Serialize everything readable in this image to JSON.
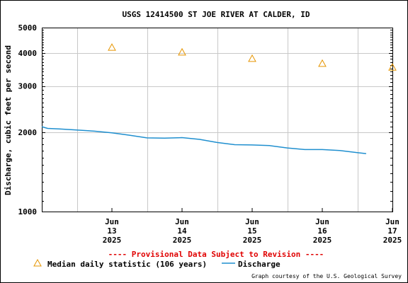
{
  "chart_data": {
    "type": "line",
    "title": "USGS 12414500 ST JOE RIVER AT CALDER, ID",
    "ylabel": "Discharge, cubic feet per second",
    "xlabel": "",
    "y_scale": "log",
    "ylim": [
      1000,
      5000
    ],
    "yticks": [
      "1000",
      "2000",
      "3000",
      "4000",
      "5000"
    ],
    "x_range": [
      "2025-06-12 12:00",
      "2025-06-17 12:00"
    ],
    "xticks": [
      {
        "month": "Jun",
        "day": "13",
        "year": "2025",
        "date": "2025-06-13"
      },
      {
        "month": "Jun",
        "day": "14",
        "year": "2025",
        "date": "2025-06-14"
      },
      {
        "month": "Jun",
        "day": "15",
        "year": "2025",
        "date": "2025-06-15"
      },
      {
        "month": "Jun",
        "day": "16",
        "year": "2025",
        "date": "2025-06-16"
      },
      {
        "month": "Jun",
        "day": "17",
        "year": "2025",
        "date": "2025-06-17"
      }
    ],
    "grid": true,
    "series": [
      {
        "name": "Median daily statistic (106 years)",
        "kind": "triangles",
        "color": "#e69500",
        "points": [
          {
            "x": "2025-06-13",
            "y": 4200
          },
          {
            "x": "2025-06-14",
            "y": 4030
          },
          {
            "x": "2025-06-15",
            "y": 3810
          },
          {
            "x": "2025-06-16",
            "y": 3650
          },
          {
            "x": "2025-06-17",
            "y": 3530
          }
        ]
      },
      {
        "name": "Discharge",
        "kind": "line",
        "color": "#1f8fcf",
        "points": [
          {
            "x": "2025-06-12 12:00",
            "y": 2100
          },
          {
            "x": "2025-06-12 14:00",
            "y": 2070
          },
          {
            "x": "2025-06-12 18:00",
            "y": 2060
          },
          {
            "x": "2025-06-13 00:00",
            "y": 2040
          },
          {
            "x": "2025-06-13 06:00",
            "y": 2020
          },
          {
            "x": "2025-06-13 12:00",
            "y": 1990
          },
          {
            "x": "2025-06-13 18:00",
            "y": 1950
          },
          {
            "x": "2025-06-14 00:00",
            "y": 1905
          },
          {
            "x": "2025-06-14 06:00",
            "y": 1900
          },
          {
            "x": "2025-06-14 12:00",
            "y": 1910
          },
          {
            "x": "2025-06-14 18:00",
            "y": 1880
          },
          {
            "x": "2025-06-15 00:00",
            "y": 1830
          },
          {
            "x": "2025-06-15 06:00",
            "y": 1795
          },
          {
            "x": "2025-06-15 12:00",
            "y": 1790
          },
          {
            "x": "2025-06-15 18:00",
            "y": 1780
          },
          {
            "x": "2025-06-16 00:00",
            "y": 1745
          },
          {
            "x": "2025-06-16 06:00",
            "y": 1720
          },
          {
            "x": "2025-06-16 12:00",
            "y": 1720
          },
          {
            "x": "2025-06-16 18:00",
            "y": 1705
          },
          {
            "x": "2025-06-17 00:00",
            "y": 1675
          },
          {
            "x": "2025-06-17 03:00",
            "y": 1660
          }
        ]
      }
    ],
    "legend_placement": "bottom-left",
    "provisional_note": "---- Provisional Data Subject to Revision ----",
    "credit": "Graph courtesy of the U.S. Geological Survey"
  }
}
